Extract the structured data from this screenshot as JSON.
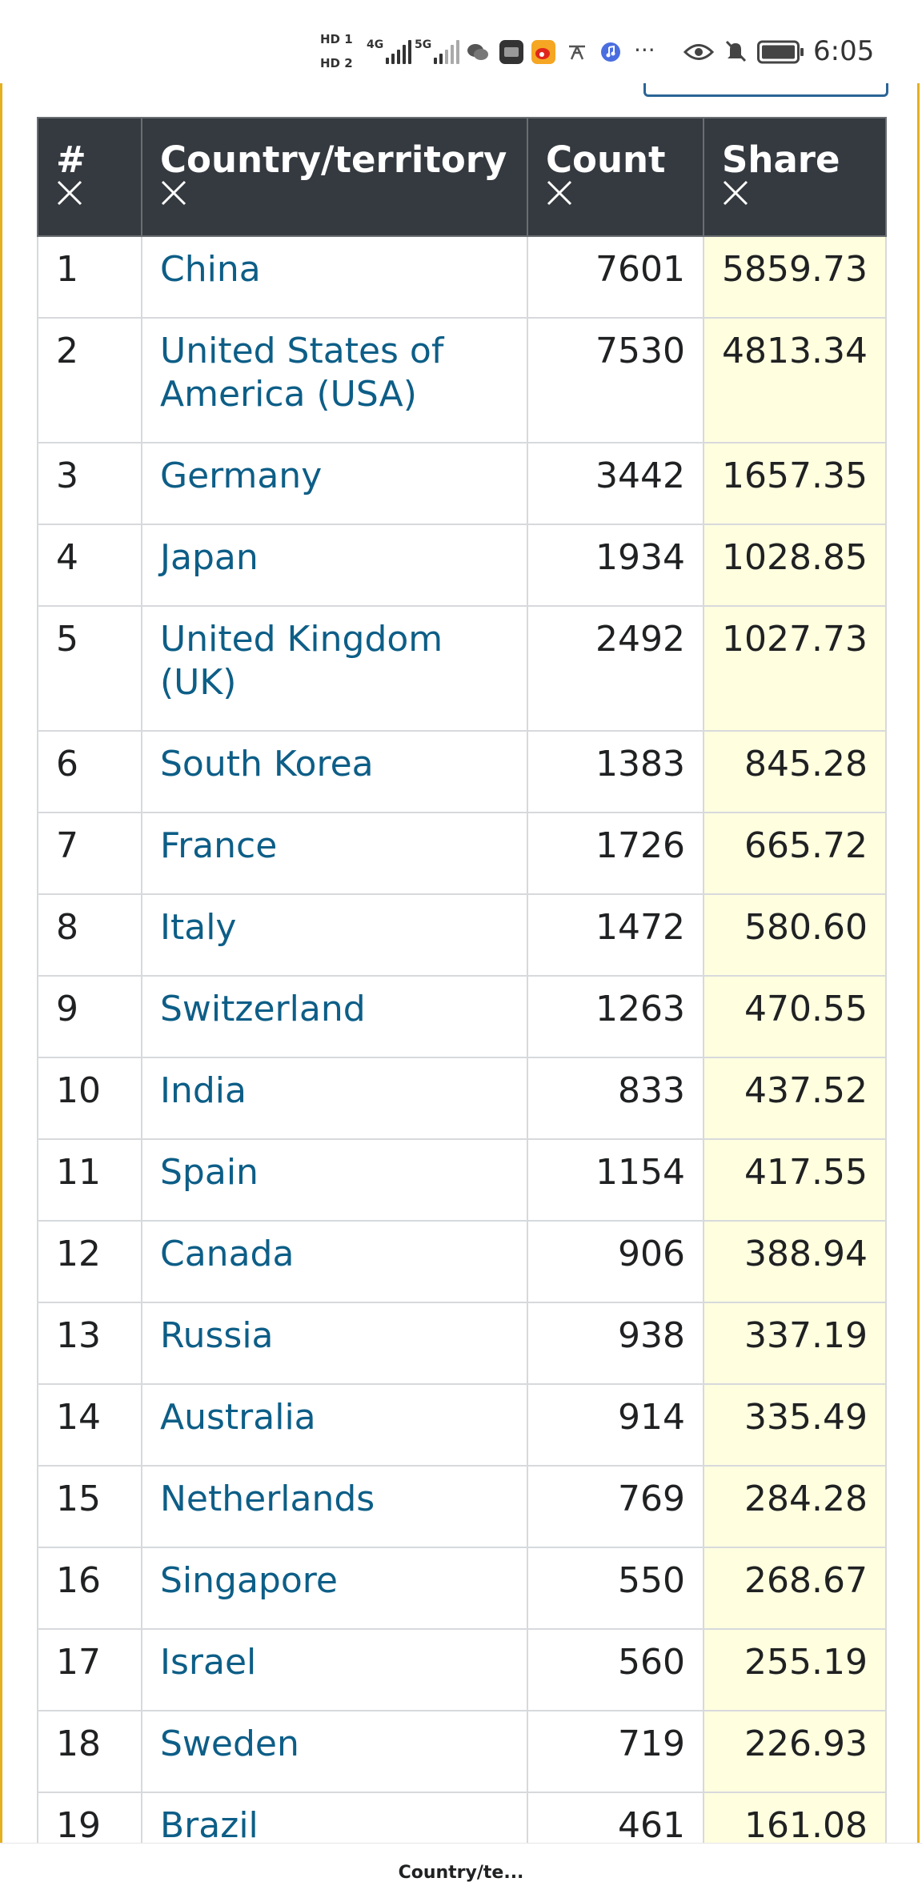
{
  "status_bar": {
    "hd1": "HD 1",
    "hd2": "HD 2",
    "sim1_gen": "4G",
    "sim2_gen": "5G",
    "more": "···",
    "time": "6:05"
  },
  "table": {
    "headers": {
      "rank": "#",
      "country": "Country/territory",
      "count": "Count",
      "share": "Share"
    },
    "rows": [
      {
        "rank": "1",
        "country": "China",
        "count": "7601",
        "share": "5859.73"
      },
      {
        "rank": "2",
        "country": "United States of America (USA)",
        "count": "7530",
        "share": "4813.34"
      },
      {
        "rank": "3",
        "country": "Germany",
        "count": "3442",
        "share": "1657.35"
      },
      {
        "rank": "4",
        "country": "Japan",
        "count": "1934",
        "share": "1028.85"
      },
      {
        "rank": "5",
        "country": "United Kingdom (UK)",
        "count": "2492",
        "share": "1027.73"
      },
      {
        "rank": "6",
        "country": "South Korea",
        "count": "1383",
        "share": "845.28"
      },
      {
        "rank": "7",
        "country": "France",
        "count": "1726",
        "share": "665.72"
      },
      {
        "rank": "8",
        "country": "Italy",
        "count": "1472",
        "share": "580.60"
      },
      {
        "rank": "9",
        "country": "Switzerland",
        "count": "1263",
        "share": "470.55"
      },
      {
        "rank": "10",
        "country": "India",
        "count": "833",
        "share": "437.52"
      },
      {
        "rank": "11",
        "country": "Spain",
        "count": "1154",
        "share": "417.55"
      },
      {
        "rank": "12",
        "country": "Canada",
        "count": "906",
        "share": "388.94"
      },
      {
        "rank": "13",
        "country": "Russia",
        "count": "938",
        "share": "337.19"
      },
      {
        "rank": "14",
        "country": "Australia",
        "count": "914",
        "share": "335.49"
      },
      {
        "rank": "15",
        "country": "Netherlands",
        "count": "769",
        "share": "284.28"
      },
      {
        "rank": "16",
        "country": "Singapore",
        "count": "550",
        "share": "268.67"
      },
      {
        "rank": "17",
        "country": "Israel",
        "count": "560",
        "share": "255.19"
      },
      {
        "rank": "18",
        "country": "Sweden",
        "count": "719",
        "share": "226.93"
      },
      {
        "rank": "19",
        "country": "Brazil",
        "count": "461",
        "share": "161.08"
      }
    ]
  },
  "bottom_bar": {
    "title": "Country/te..."
  },
  "colors": {
    "header_bg": "#353a40",
    "link": "#0d5e87",
    "share_bg": "#ffffe0",
    "frame_accent": "#e5b020"
  }
}
